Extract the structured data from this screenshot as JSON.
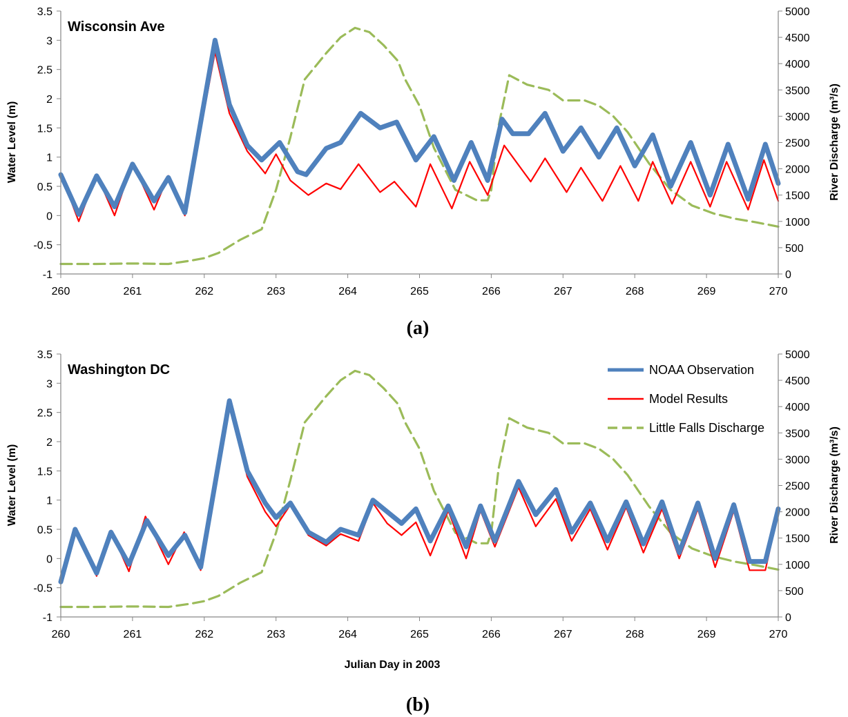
{
  "chart_data": [
    {
      "type": "line",
      "title": "Wisconsin Ave",
      "caption": "(a)",
      "xlabel": "",
      "ylabel": "Water Level (m)",
      "y2label": "River Discharge (m³/s)",
      "xlim": [
        260,
        270
      ],
      "ylim": [
        -1,
        3.5
      ],
      "y2lim": [
        0,
        5000
      ],
      "xticks": [
        "260",
        "261",
        "262",
        "263",
        "264",
        "265",
        "266",
        "267",
        "268",
        "269",
        "270"
      ],
      "yticks": [
        "-1",
        "-0.5",
        "0",
        "0.5",
        "1",
        "1.5",
        "2",
        "2.5",
        "3",
        "3.5"
      ],
      "y2ticks": [
        "0",
        "500",
        "1000",
        "1500",
        "2000",
        "2500",
        "3000",
        "3500",
        "4000",
        "4500",
        "5000"
      ],
      "grid": false,
      "legend": "none",
      "series": [
        {
          "color": "#4F81BD",
          "axis": "left",
          "x": [
            260.0,
            260.25,
            260.5,
            260.75,
            261.0,
            261.3,
            261.5,
            261.73,
            262.15,
            262.35,
            262.6,
            262.8,
            263.05,
            263.3,
            263.42,
            263.7,
            263.9,
            264.18,
            264.45,
            264.68,
            264.95,
            265.2,
            265.48,
            265.72,
            265.95,
            266.15,
            266.3,
            266.52,
            266.75,
            267.0,
            267.25,
            267.5,
            267.75,
            268.0,
            268.25,
            268.5,
            268.78,
            269.05,
            269.3,
            269.58,
            269.82,
            270.0
          ],
          "y": [
            0.7,
            0.02,
            0.68,
            0.15,
            0.88,
            0.25,
            0.65,
            0.05,
            3.0,
            1.9,
            1.2,
            0.95,
            1.25,
            0.75,
            0.7,
            1.15,
            1.25,
            1.75,
            1.5,
            1.6,
            0.95,
            1.35,
            0.6,
            1.25,
            0.6,
            1.65,
            1.4,
            1.4,
            1.75,
            1.1,
            1.5,
            1.0,
            1.5,
            0.85,
            1.38,
            0.5,
            1.25,
            0.35,
            1.22,
            0.28,
            1.22,
            0.55
          ]
        },
        {
          "color": "#FF0000",
          "axis": "left",
          "x": [
            260.0,
            260.25,
            260.5,
            260.75,
            261.0,
            261.3,
            261.5,
            261.73,
            262.15,
            262.35,
            262.6,
            262.85,
            263.0,
            263.2,
            263.45,
            263.7,
            263.9,
            264.15,
            264.45,
            264.65,
            264.95,
            265.15,
            265.45,
            265.7,
            265.95,
            266.18,
            266.55,
            266.75,
            267.05,
            267.25,
            267.55,
            267.8,
            268.05,
            268.25,
            268.52,
            268.78,
            269.05,
            269.28,
            269.58,
            269.8,
            270.0
          ],
          "y": [
            0.72,
            -0.1,
            0.7,
            0.0,
            0.9,
            0.1,
            0.68,
            0.0,
            2.8,
            1.75,
            1.1,
            0.72,
            1.05,
            0.6,
            0.35,
            0.55,
            0.45,
            0.88,
            0.4,
            0.58,
            0.15,
            0.88,
            0.12,
            0.92,
            0.35,
            1.2,
            0.58,
            0.98,
            0.4,
            0.82,
            0.25,
            0.85,
            0.25,
            0.92,
            0.2,
            0.92,
            0.15,
            0.92,
            0.1,
            0.95,
            0.25
          ]
        },
        {
          "color": "#9BBB59",
          "axis": "right",
          "dashed": true,
          "x": [
            260.0,
            260.5,
            261.0,
            261.5,
            261.8,
            262.0,
            262.2,
            262.5,
            262.8,
            263.0,
            263.2,
            263.4,
            263.7,
            263.9,
            264.1,
            264.3,
            264.5,
            264.7,
            264.8,
            265.0,
            265.2,
            265.5,
            265.8,
            265.95,
            266.0,
            266.1,
            266.25,
            266.5,
            266.8,
            267.0,
            267.3,
            267.5,
            267.7,
            267.9,
            268.2,
            268.5,
            268.8,
            269.1,
            269.4,
            269.7,
            270.0
          ],
          "y": [
            190,
            190,
            200,
            190,
            250,
            300,
            400,
            650,
            850,
            1600,
            2600,
            3700,
            4200,
            4500,
            4680,
            4600,
            4350,
            4050,
            3700,
            3200,
            2400,
            1600,
            1400,
            1400,
            1600,
            2800,
            3780,
            3600,
            3500,
            3300,
            3300,
            3200,
            3000,
            2700,
            2100,
            1600,
            1300,
            1150,
            1050,
            980,
            900
          ]
        }
      ]
    },
    {
      "type": "line",
      "title": "Washington DC",
      "caption": "(b)",
      "xlabel": "Julian Day in 2003",
      "ylabel": "Water Level (m)",
      "y2label": "River Discharge (m³/s)",
      "xlim": [
        260,
        270
      ],
      "ylim": [
        -1,
        3.5
      ],
      "y2lim": [
        0,
        5000
      ],
      "xticks": [
        "260",
        "261",
        "262",
        "263",
        "264",
        "265",
        "266",
        "267",
        "268",
        "269",
        "270"
      ],
      "yticks": [
        "-1",
        "-0.5",
        "0",
        "0.5",
        "1",
        "1.5",
        "2",
        "2.5",
        "3",
        "3.5"
      ],
      "y2ticks": [
        "0",
        "500",
        "1000",
        "1500",
        "2000",
        "2500",
        "3000",
        "3500",
        "4000",
        "4500",
        "5000"
      ],
      "grid": false,
      "legend": "top-right",
      "series": [
        {
          "name": "NOAA Observation",
          "color": "#4F81BD",
          "axis": "left",
          "x": [
            260.0,
            260.2,
            260.5,
            260.7,
            260.95,
            261.2,
            261.5,
            261.73,
            261.95,
            262.35,
            262.6,
            262.85,
            263.0,
            263.2,
            263.45,
            263.7,
            263.9,
            264.15,
            264.35,
            264.55,
            264.75,
            264.95,
            265.15,
            265.4,
            265.65,
            265.85,
            266.05,
            266.38,
            266.62,
            266.9,
            267.12,
            267.38,
            267.62,
            267.88,
            268.12,
            268.38,
            268.62,
            268.88,
            269.12,
            269.38,
            269.6,
            269.82,
            270.0
          ],
          "y": [
            -0.4,
            0.5,
            -0.25,
            0.45,
            -0.1,
            0.65,
            0.05,
            0.4,
            -0.15,
            2.7,
            1.5,
            0.95,
            0.7,
            0.95,
            0.45,
            0.28,
            0.5,
            0.4,
            1.0,
            0.8,
            0.6,
            0.85,
            0.3,
            0.9,
            0.2,
            0.9,
            0.3,
            1.32,
            0.75,
            1.18,
            0.45,
            0.95,
            0.3,
            0.97,
            0.25,
            0.97,
            0.1,
            0.95,
            0.0,
            0.92,
            -0.05,
            -0.05,
            0.85
          ]
        },
        {
          "name": "Model Results",
          "color": "#FF0000",
          "axis": "left",
          "x": [
            260.0,
            260.2,
            260.5,
            260.7,
            260.95,
            261.18,
            261.5,
            261.72,
            261.95,
            262.35,
            262.6,
            262.85,
            263.0,
            263.2,
            263.45,
            263.7,
            263.9,
            264.15,
            264.35,
            264.55,
            264.75,
            264.95,
            265.15,
            265.4,
            265.65,
            265.85,
            266.05,
            266.38,
            266.62,
            266.9,
            267.12,
            267.38,
            267.62,
            267.88,
            268.12,
            268.38,
            268.62,
            268.88,
            269.12,
            269.38,
            269.6,
            269.82,
            270.0
          ],
          "y": [
            -0.35,
            0.52,
            -0.3,
            0.48,
            -0.22,
            0.72,
            -0.1,
            0.45,
            -0.2,
            2.65,
            1.4,
            0.8,
            0.55,
            0.92,
            0.4,
            0.22,
            0.42,
            0.3,
            0.95,
            0.6,
            0.4,
            0.62,
            0.05,
            0.82,
            0.0,
            0.82,
            0.2,
            1.22,
            0.55,
            1.02,
            0.3,
            0.85,
            0.15,
            0.88,
            0.1,
            0.85,
            0.0,
            0.85,
            -0.15,
            0.82,
            -0.2,
            -0.2,
            0.8
          ]
        },
        {
          "name": "Little Falls Discharge",
          "color": "#9BBB59",
          "axis": "right",
          "dashed": true,
          "x": [
            260.0,
            260.5,
            261.0,
            261.5,
            261.8,
            262.0,
            262.2,
            262.5,
            262.8,
            263.0,
            263.2,
            263.4,
            263.7,
            263.9,
            264.1,
            264.3,
            264.5,
            264.7,
            264.8,
            265.0,
            265.2,
            265.5,
            265.8,
            265.95,
            266.0,
            266.1,
            266.25,
            266.5,
            266.8,
            267.0,
            267.3,
            267.5,
            267.7,
            267.9,
            268.2,
            268.5,
            268.8,
            269.1,
            269.4,
            269.7,
            270.0
          ],
          "y": [
            190,
            190,
            200,
            190,
            250,
            300,
            400,
            650,
            850,
            1600,
            2600,
            3700,
            4200,
            4500,
            4680,
            4600,
            4350,
            4050,
            3700,
            3200,
            2400,
            1600,
            1400,
            1400,
            1600,
            2800,
            3780,
            3600,
            3500,
            3300,
            3300,
            3200,
            3000,
            2700,
            2100,
            1600,
            1300,
            1150,
            1050,
            980,
            900
          ]
        }
      ]
    }
  ]
}
